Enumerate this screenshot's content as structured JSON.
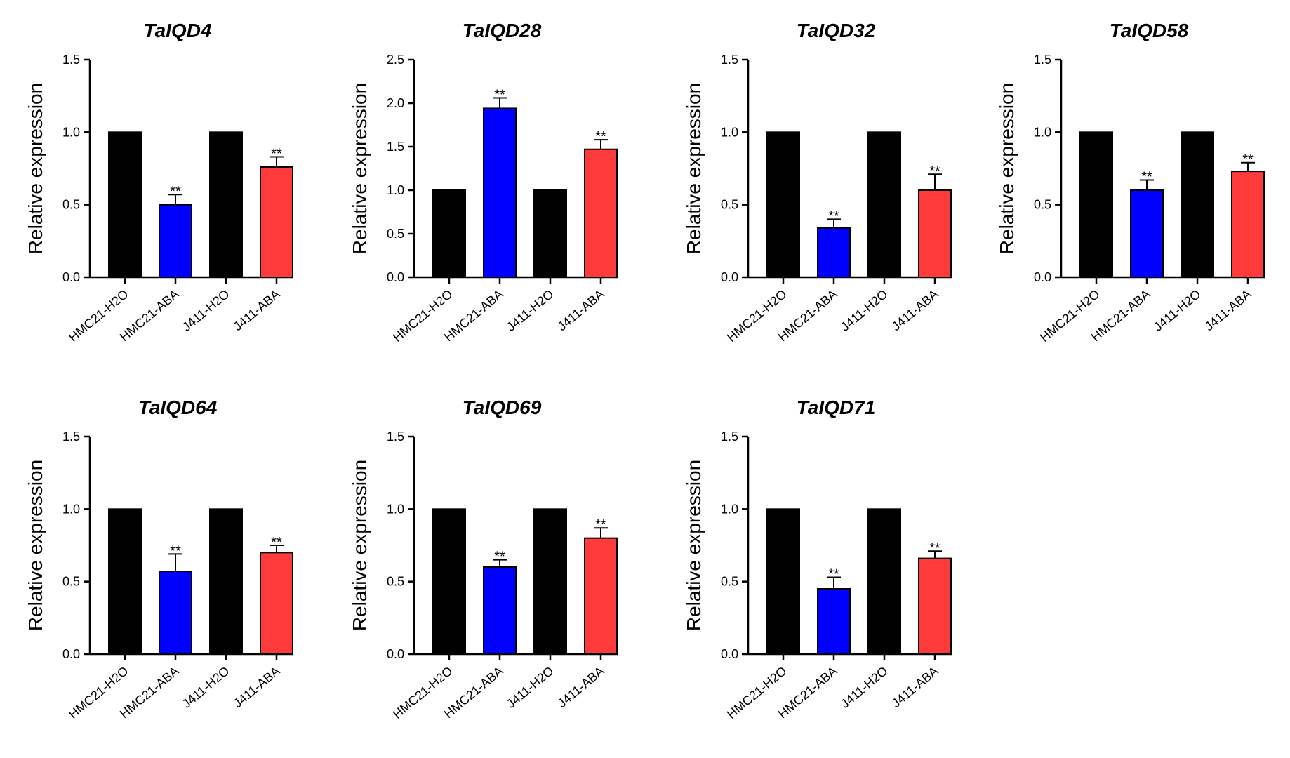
{
  "chart_data": [
    {
      "type": "bar",
      "title": "TaIQD4",
      "ylabel": "Relative expression",
      "categories": [
        "HMC21-H2O",
        "HMC21-ABA",
        "J411-H2O",
        "J411-ABA"
      ],
      "values": [
        1.0,
        0.5,
        1.0,
        0.76
      ],
      "errors": [
        0.0,
        0.07,
        0.0,
        0.07
      ],
      "significance": [
        "",
        "**",
        "",
        "**"
      ],
      "ylim": [
        0,
        1.5
      ],
      "yticks": [
        "0.0",
        "0.5",
        "1.0",
        "1.5"
      ],
      "colors": [
        "#000000",
        "#0000ff",
        "#000000",
        "#ff3a3a"
      ]
    },
    {
      "type": "bar",
      "title": "TaIQD28",
      "ylabel": "Relative expression",
      "categories": [
        "HMC21-H2O",
        "HMC21-ABA",
        "J411-H2O",
        "J411-ABA"
      ],
      "values": [
        1.0,
        1.94,
        1.0,
        1.47
      ],
      "errors": [
        0.0,
        0.12,
        0.0,
        0.11
      ],
      "significance": [
        "",
        "**",
        "",
        "**"
      ],
      "ylim": [
        0,
        2.5
      ],
      "yticks": [
        "0.0",
        "0.5",
        "1.0",
        "1.5",
        "2.0",
        "2.5"
      ],
      "colors": [
        "#000000",
        "#0000ff",
        "#000000",
        "#ff3a3a"
      ]
    },
    {
      "type": "bar",
      "title": "TaIQD32",
      "ylabel": "Relative expression",
      "categories": [
        "HMC21-H2O",
        "HMC21-ABA",
        "J411-H2O",
        "J411-ABA"
      ],
      "values": [
        1.0,
        0.34,
        1.0,
        0.6
      ],
      "errors": [
        0.0,
        0.06,
        0.0,
        0.11
      ],
      "significance": [
        "",
        "**",
        "",
        "**"
      ],
      "ylim": [
        0,
        1.5
      ],
      "yticks": [
        "0.0",
        "0.5",
        "1.0",
        "1.5"
      ],
      "colors": [
        "#000000",
        "#0000ff",
        "#000000",
        "#ff3a3a"
      ]
    },
    {
      "type": "bar",
      "title": "TaIQD58",
      "ylabel": "Relative expression",
      "categories": [
        "HMC21-H2O",
        "HMC21-ABA",
        "J411-H2O",
        "J411-ABA"
      ],
      "values": [
        1.0,
        0.6,
        1.0,
        0.73
      ],
      "errors": [
        0.0,
        0.07,
        0.0,
        0.06
      ],
      "significance": [
        "",
        "**",
        "",
        "**"
      ],
      "ylim": [
        0,
        1.5
      ],
      "yticks": [
        "0.0",
        "0.5",
        "1.0",
        "1.5"
      ],
      "colors": [
        "#000000",
        "#0000ff",
        "#000000",
        "#ff3a3a"
      ]
    },
    {
      "type": "bar",
      "title": "TaIQD64",
      "ylabel": "Relative expression",
      "categories": [
        "HMC21-H2O",
        "HMC21-ABA",
        "J411-H2O",
        "J411-ABA"
      ],
      "values": [
        1.0,
        0.57,
        1.0,
        0.7
      ],
      "errors": [
        0.0,
        0.12,
        0.0,
        0.05
      ],
      "significance": [
        "",
        "**",
        "",
        "**"
      ],
      "ylim": [
        0,
        1.5
      ],
      "yticks": [
        "0.0",
        "0.5",
        "1.0",
        "1.5"
      ],
      "colors": [
        "#000000",
        "#0000ff",
        "#000000",
        "#ff3a3a"
      ]
    },
    {
      "type": "bar",
      "title": "TaIQD69",
      "ylabel": "Relative expression",
      "categories": [
        "HMC21-H2O",
        "HMC21-ABA",
        "J411-H2O",
        "J411-ABA"
      ],
      "values": [
        1.0,
        0.6,
        1.0,
        0.8
      ],
      "errors": [
        0.0,
        0.05,
        0.0,
        0.07
      ],
      "significance": [
        "",
        "**",
        "",
        "**"
      ],
      "ylim": [
        0,
        1.5
      ],
      "yticks": [
        "0.0",
        "0.5",
        "1.0",
        "1.5"
      ],
      "colors": [
        "#000000",
        "#0000ff",
        "#000000",
        "#ff3a3a"
      ]
    },
    {
      "type": "bar",
      "title": "TaIQD71",
      "ylabel": "Relative expression",
      "categories": [
        "HMC21-H2O",
        "HMC21-ABA",
        "J411-H2O",
        "J411-ABA"
      ],
      "values": [
        1.0,
        0.45,
        1.0,
        0.66
      ],
      "errors": [
        0.0,
        0.08,
        0.0,
        0.05
      ],
      "significance": [
        "",
        "**",
        "",
        "**"
      ],
      "ylim": [
        0,
        1.5
      ],
      "yticks": [
        "0.0",
        "0.5",
        "1.0",
        "1.5"
      ],
      "colors": [
        "#000000",
        "#0000ff",
        "#000000",
        "#ff3a3a"
      ]
    }
  ]
}
